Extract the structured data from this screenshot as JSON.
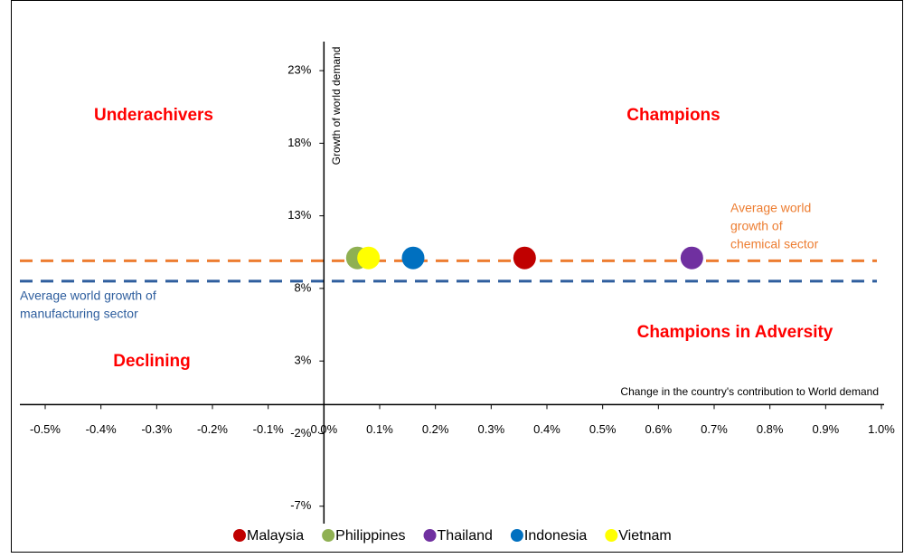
{
  "chart_data": {
    "type": "scatter",
    "xlabel": "Change in the country's contribution to World demand",
    "ylabel": "Growth of world demand",
    "xlim": [
      -0.5,
      1.0
    ],
    "ylim": [
      -8.2,
      25
    ],
    "xticks": [
      {
        "value": -0.5,
        "label": "-0.5%"
      },
      {
        "value": -0.4,
        "label": "-0.4%"
      },
      {
        "value": -0.3,
        "label": "-0.3%"
      },
      {
        "value": -0.2,
        "label": "-0.2%"
      },
      {
        "value": -0.1,
        "label": "-0.1%"
      },
      {
        "value": 0.0,
        "label": "0.0%"
      },
      {
        "value": 0.1,
        "label": "0.1%"
      },
      {
        "value": 0.2,
        "label": "0.2%"
      },
      {
        "value": 0.3,
        "label": "0.3%"
      },
      {
        "value": 0.4,
        "label": "0.4%"
      },
      {
        "value": 0.5,
        "label": "0.5%"
      },
      {
        "value": 0.6,
        "label": "0.6%"
      },
      {
        "value": 0.7,
        "label": "0.7%"
      },
      {
        "value": 0.8,
        "label": "0.8%"
      },
      {
        "value": 0.9,
        "label": "0.9%"
      },
      {
        "value": 1.0,
        "label": "1.0%"
      }
    ],
    "yticks": [
      {
        "value": -7,
        "label": "-7%"
      },
      {
        "value": -2,
        "label": "-2%"
      },
      {
        "value": 3,
        "label": "3%"
      },
      {
        "value": 8,
        "label": "8%"
      },
      {
        "value": 13,
        "label": "13%"
      },
      {
        "value": 18,
        "label": "18%"
      },
      {
        "value": 23,
        "label": "23%"
      }
    ],
    "series": [
      {
        "name": "Malaysia",
        "color": "#c00000",
        "x": [
          0.36
        ],
        "values": [
          10.1
        ]
      },
      {
        "name": "Philippines",
        "color": "#8fb052",
        "x": [
          0.06
        ],
        "values": [
          10.1
        ]
      },
      {
        "name": "Thailand",
        "color": "#7030a0",
        "x": [
          0.66
        ],
        "values": [
          10.1
        ]
      },
      {
        "name": "Indonesia",
        "color": "#0070c0",
        "x": [
          0.16
        ],
        "values": [
          10.1
        ]
      },
      {
        "name": "Vietnam",
        "color": "#ffff00",
        "x": [
          0.08
        ],
        "values": [
          10.1
        ]
      }
    ],
    "reference_lines": [
      {
        "label_lines": [
          "Average world",
          "growth of",
          "chemical sector"
        ],
        "value": 9.9,
        "color": "#ed7d31"
      },
      {
        "label_lines": [
          "Average world growth of",
          "manufacturing sector"
        ],
        "value": 8.5,
        "color": "#2e5e9e"
      }
    ],
    "annotations": [
      "Underachivers",
      "Champions",
      "Declining",
      "Champions in Adversity"
    ]
  }
}
